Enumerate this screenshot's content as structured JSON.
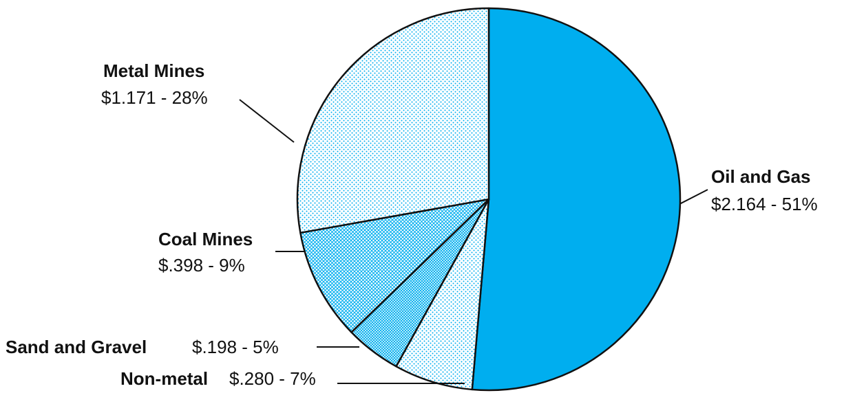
{
  "chart_data": {
    "type": "pie",
    "title": "",
    "slices": [
      {
        "label": "Oil and Gas",
        "value": 2.164,
        "value_text": "$2.164 - 51%",
        "percent": 51,
        "color": "#00AEEF",
        "pattern": "solid"
      },
      {
        "label": "Non-metal",
        "value": 0.28,
        "value_text": "$.280 - 7%",
        "percent": 7,
        "color": "#00AEEF",
        "pattern": "sparse-dots"
      },
      {
        "label": "Sand and Gravel",
        "value": 0.198,
        "value_text": "$.198 - 5%",
        "percent": 5,
        "color": "#00AEEF",
        "pattern": "dense-dots"
      },
      {
        "label": "Coal Mines",
        "value": 0.398,
        "value_text": "$.398 - 9%",
        "percent": 9,
        "color": "#00AEEF",
        "pattern": "crosshatch"
      },
      {
        "label": "Metal Mines",
        "value": 1.171,
        "value_text": "$1.171 - 28%",
        "percent": 28,
        "color": "#00AEEF",
        "pattern": "sparse-dots"
      }
    ]
  }
}
